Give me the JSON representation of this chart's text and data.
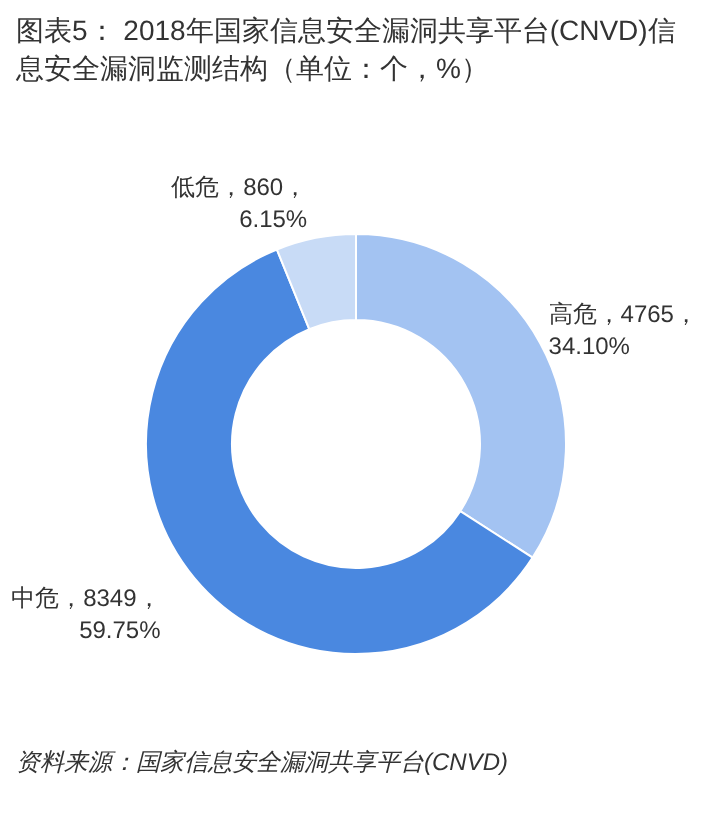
{
  "chart_data": {
    "type": "donut",
    "title": "图表5： 2018年国家信息安全漏洞共享平台(CNVD)信息安全漏洞监测结构（单位：个，%）",
    "categories": [
      "高危",
      "中危",
      "低危"
    ],
    "values": [
      34.1,
      59.75,
      6.15
    ],
    "colors": [
      "#a3c3f2",
      "#4a88e0",
      "#c8dbf6"
    ],
    "value_labels": [
      "，4765，\n34.10%",
      "，8349，\n59.75%",
      "，860，\n6.15%"
    ],
    "annotations": [
      "资料来源：国家信息安全漏洞共享平台(CNVD)"
    ]
  }
}
